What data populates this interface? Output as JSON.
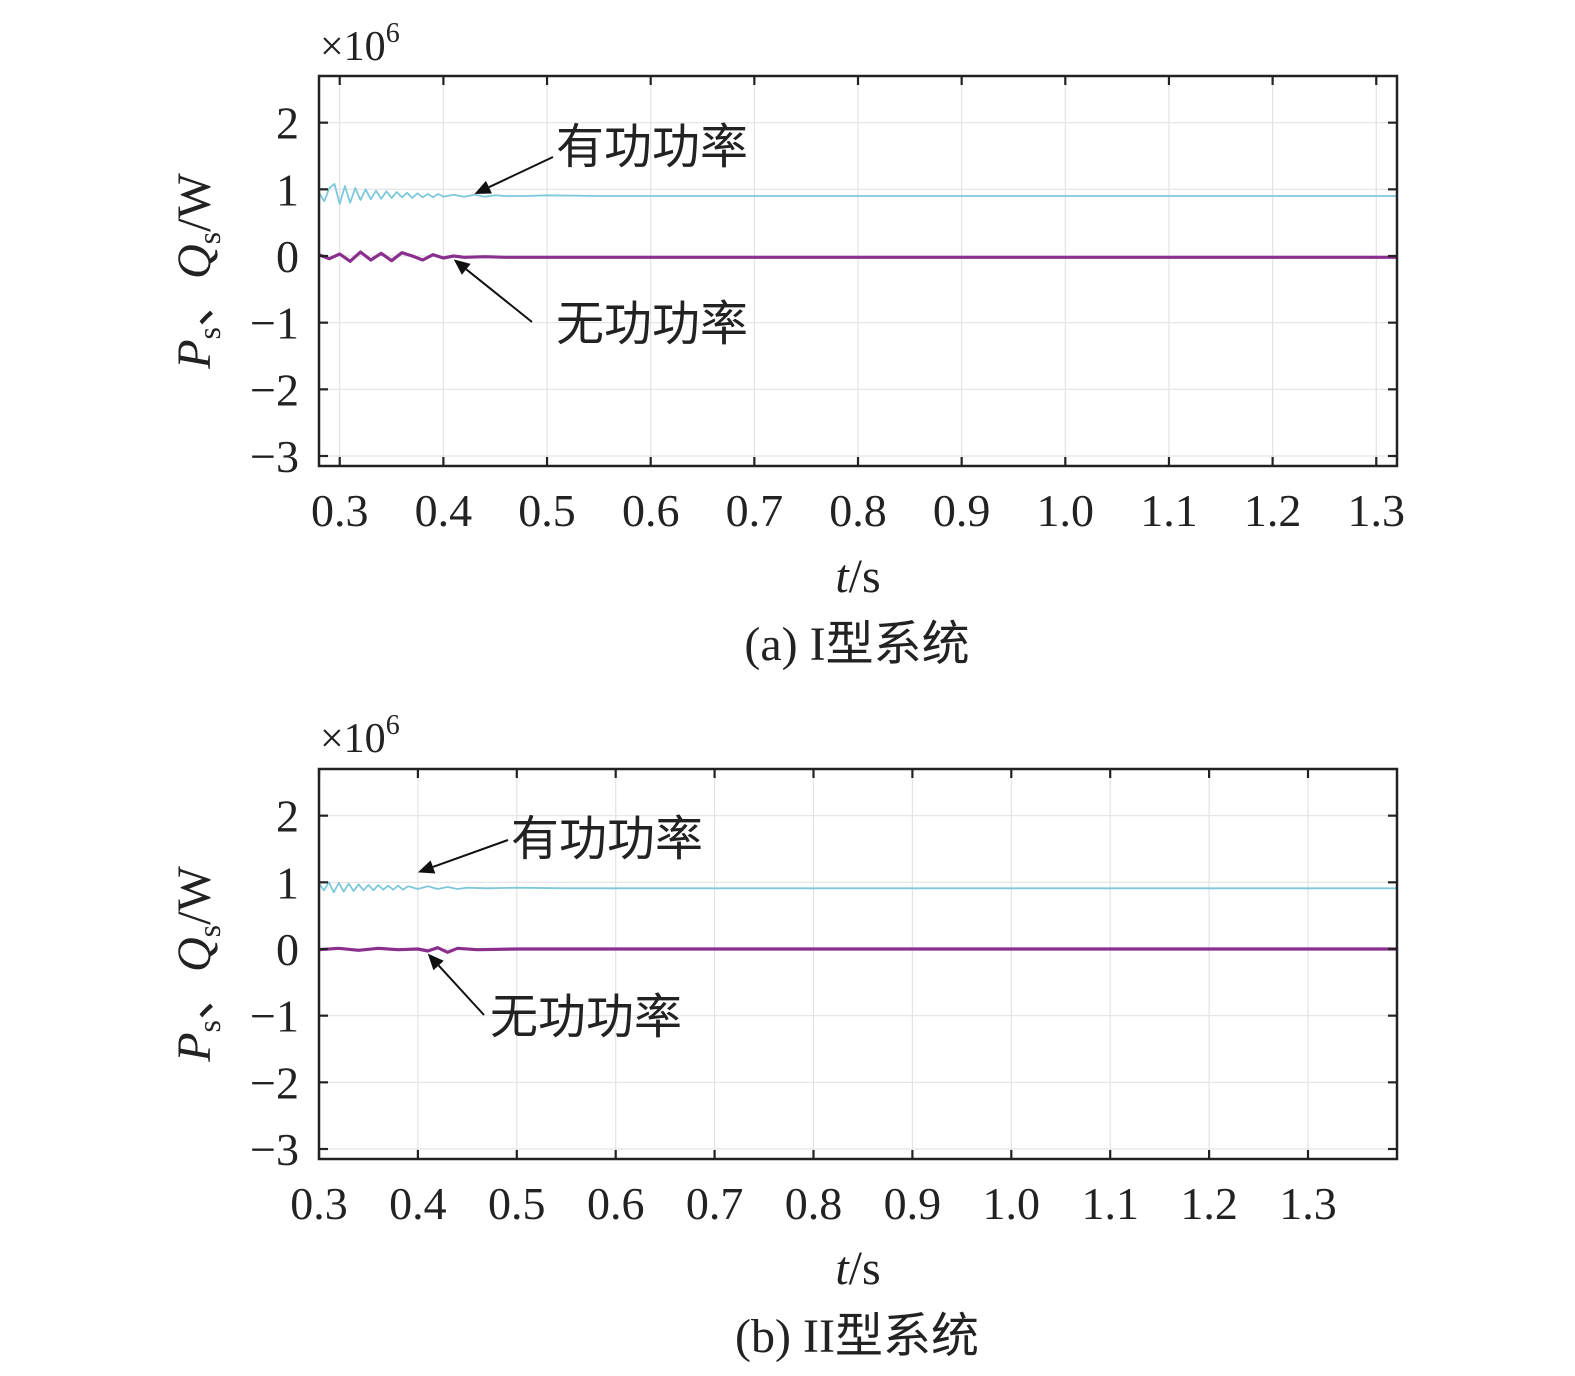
{
  "chart_data": [
    {
      "type": "line",
      "caption": "(a) I型系统",
      "xlabel": {
        "var": "t",
        "unit": "/s"
      },
      "ylabel": {
        "p": "P",
        "p_sub": "s",
        "sep": "、",
        "q": "Q",
        "q_sub": "s",
        "unit": "/W"
      },
      "y_multiplier": {
        "base": "×10",
        "exponent": "6"
      },
      "xlim": [
        0.28,
        1.32
      ],
      "ylim": [
        -3.15,
        2.7
      ],
      "xticks": [
        0.3,
        0.4,
        0.5,
        0.6,
        0.7,
        0.8,
        0.9,
        1.0,
        1.1,
        1.2,
        1.3
      ],
      "xtick_labels": [
        "0.3",
        "0.4",
        "0.5",
        "0.6",
        "0.7",
        "0.8",
        "0.9",
        "1.0",
        "1.1",
        "1.2",
        "1.3"
      ],
      "yticks": [
        2,
        1,
        0,
        -1,
        -2,
        -3
      ],
      "ytick_labels": [
        "2",
        "1",
        "0",
        "−1",
        "−2",
        "−3"
      ],
      "grid": true,
      "series": [
        {
          "name": "有功功率",
          "color": "#7ec8dc",
          "x": [
            0.28,
            0.285,
            0.29,
            0.295,
            0.3,
            0.305,
            0.31,
            0.315,
            0.32,
            0.325,
            0.33,
            0.335,
            0.34,
            0.345,
            0.35,
            0.355,
            0.36,
            0.365,
            0.37,
            0.375,
            0.38,
            0.385,
            0.39,
            0.395,
            0.4,
            0.41,
            0.42,
            0.43,
            0.44,
            0.45,
            0.46,
            0.48,
            0.5,
            0.55,
            0.6,
            0.7,
            0.8,
            0.9,
            1.0,
            1.1,
            1.2,
            1.32
          ],
          "values": [
            0.95,
            0.82,
            1.02,
            1.08,
            0.78,
            1.05,
            0.8,
            1.02,
            0.84,
            1.0,
            0.85,
            0.98,
            0.86,
            0.97,
            0.87,
            0.96,
            0.88,
            0.95,
            0.87,
            0.94,
            0.88,
            0.93,
            0.88,
            0.93,
            0.89,
            0.92,
            0.89,
            0.92,
            0.89,
            0.91,
            0.9,
            0.9,
            0.91,
            0.9,
            0.9,
            0.9,
            0.9,
            0.9,
            0.9,
            0.9,
            0.9,
            0.9
          ]
        },
        {
          "name": "无功功率",
          "color": "#8b2f8f",
          "x": [
            0.28,
            0.29,
            0.3,
            0.31,
            0.32,
            0.33,
            0.34,
            0.35,
            0.36,
            0.37,
            0.38,
            0.39,
            0.4,
            0.41,
            0.42,
            0.44,
            0.46,
            0.5,
            0.6,
            0.7,
            0.8,
            0.9,
            1.0,
            1.1,
            1.2,
            1.32
          ],
          "values": [
            0.02,
            -0.04,
            0.03,
            -0.08,
            0.06,
            -0.06,
            0.04,
            -0.07,
            0.05,
            0.0,
            -0.06,
            0.02,
            -0.03,
            0.0,
            -0.02,
            -0.01,
            -0.02,
            -0.02,
            -0.02,
            -0.02,
            -0.02,
            -0.02,
            -0.02,
            -0.02,
            -0.02,
            -0.02
          ]
        }
      ],
      "annotations": [
        {
          "text": "有功功率",
          "series": "有功功率",
          "arrow_to": [
            0.43,
            0.93
          ]
        },
        {
          "text": "无功功率",
          "series": "无功功率",
          "arrow_to": [
            0.41,
            -0.05
          ]
        }
      ]
    },
    {
      "type": "line",
      "caption": "(b) II型系统",
      "xlabel": {
        "var": "t",
        "unit": "/s"
      },
      "ylabel": {
        "p": "P",
        "p_sub": "s",
        "sep": "、",
        "q": "Q",
        "q_sub": "s",
        "unit": "/W"
      },
      "y_multiplier": {
        "base": "×10",
        "exponent": "6"
      },
      "xlim": [
        0.3,
        1.39
      ],
      "ylim": [
        -3.15,
        2.7
      ],
      "xticks": [
        0.3,
        0.4,
        0.5,
        0.6,
        0.7,
        0.8,
        0.9,
        1.0,
        1.1,
        1.2,
        1.3
      ],
      "xtick_labels": [
        "0.3",
        "0.4",
        "0.5",
        "0.6",
        "0.7",
        "0.8",
        "0.9",
        "1.0",
        "1.1",
        "1.2",
        "1.3"
      ],
      "yticks": [
        2,
        1,
        0,
        -1,
        -2,
        -3
      ],
      "ytick_labels": [
        "2",
        "1",
        "0",
        "−1",
        "−2",
        "−3"
      ],
      "grid": true,
      "series": [
        {
          "name": "有功功率",
          "color": "#7ec8dc",
          "x": [
            0.3,
            0.305,
            0.31,
            0.315,
            0.32,
            0.325,
            0.33,
            0.335,
            0.34,
            0.345,
            0.35,
            0.355,
            0.36,
            0.365,
            0.37,
            0.375,
            0.38,
            0.385,
            0.39,
            0.4,
            0.41,
            0.42,
            0.43,
            0.44,
            0.45,
            0.47,
            0.5,
            0.55,
            0.6,
            0.7,
            0.8,
            0.9,
            1.0,
            1.1,
            1.2,
            1.3,
            1.39
          ],
          "values": [
            0.98,
            0.88,
            1.0,
            0.85,
            0.99,
            0.86,
            0.98,
            0.87,
            0.97,
            0.88,
            0.96,
            0.88,
            0.96,
            0.89,
            0.95,
            0.89,
            0.95,
            0.89,
            0.94,
            0.9,
            0.94,
            0.9,
            0.93,
            0.9,
            0.92,
            0.91,
            0.92,
            0.91,
            0.91,
            0.91,
            0.91,
            0.91,
            0.91,
            0.91,
            0.91,
            0.91,
            0.91
          ]
        },
        {
          "name": "无功功率",
          "color": "#8b2f8f",
          "x": [
            0.3,
            0.32,
            0.34,
            0.36,
            0.38,
            0.4,
            0.41,
            0.42,
            0.43,
            0.44,
            0.46,
            0.5,
            0.6,
            0.7,
            0.8,
            0.9,
            1.0,
            1.1,
            1.2,
            1.3,
            1.39
          ],
          "values": [
            -0.01,
            0.01,
            -0.02,
            0.01,
            -0.01,
            0.0,
            -0.03,
            0.02,
            -0.05,
            0.01,
            -0.01,
            0.0,
            0.0,
            0.0,
            0.0,
            0.0,
            0.0,
            0.0,
            0.0,
            0.0,
            0.0
          ]
        }
      ],
      "annotations": [
        {
          "text": "有功功率",
          "series": "有功功率",
          "arrow_to": [
            0.4,
            1.15
          ]
        },
        {
          "text": "无功功率",
          "series": "无功功率",
          "arrow_to": [
            0.41,
            -0.07
          ]
        }
      ]
    }
  ]
}
